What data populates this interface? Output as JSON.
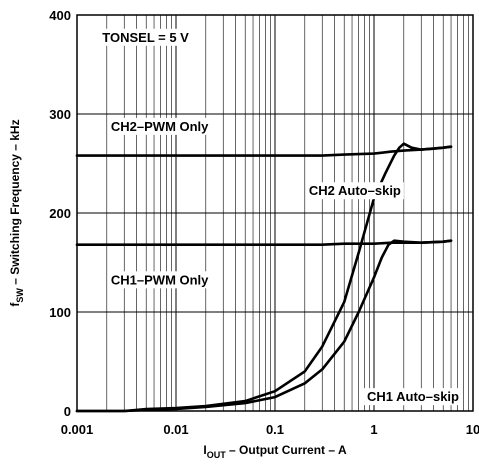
{
  "chart_data": {
    "type": "line",
    "title": "",
    "xlabel": {
      "main": "I",
      "sub": "OUT",
      "rest": " – Output Current – A"
    },
    "ylabel": {
      "main": "f",
      "sub": "SW",
      "rest": " – Switching Frequency – kHz"
    },
    "xscale": "log",
    "xlim": [
      0.001,
      10
    ],
    "ylim": [
      0,
      400
    ],
    "grid": true,
    "x_tick_labels": [
      {
        "value": 0.001,
        "label": "0.001"
      },
      {
        "value": 0.01,
        "label": "0.01"
      },
      {
        "value": 0.1,
        "label": "0.1"
      },
      {
        "value": 1,
        "label": "1"
      },
      {
        "value": 10,
        "label": "10"
      }
    ],
    "y_tick_labels": [
      {
        "value": 0,
        "label": "0"
      },
      {
        "value": 100,
        "label": "100"
      },
      {
        "value": 200,
        "label": "200"
      },
      {
        "value": 300,
        "label": "300"
      },
      {
        "value": 400,
        "label": "400"
      }
    ],
    "annotations": [
      {
        "text": "TONSEL = 5 V",
        "x": 0.0018,
        "y": 378
      },
      {
        "text": "CH2–PWM Only",
        "x": 0.0022,
        "y": 288
      },
      {
        "text": "CH2 Auto–skip",
        "x": 0.22,
        "y": 223
      },
      {
        "text": "CH1–PWM Only",
        "x": 0.0022,
        "y": 133
      },
      {
        "text": "CH1 Auto–skip",
        "x": 0.85,
        "y": 15
      }
    ],
    "series": [
      {
        "x": [
          0.001,
          0.3,
          0.5,
          1,
          1.5,
          2,
          3,
          5,
          6
        ],
        "y": [
          258,
          258,
          259,
          260,
          262,
          263,
          264,
          266,
          267
        ]
      },
      {
        "x": [
          0.001,
          0.3,
          0.5,
          1,
          1.5,
          2,
          3,
          5,
          6
        ],
        "y": [
          168,
          168,
          169,
          169,
          170,
          170,
          170,
          171,
          172
        ]
      },
      {
        "x": [
          0.001,
          0.003,
          0.005,
          0.01,
          0.02,
          0.05,
          0.1,
          0.2,
          0.3,
          0.5,
          0.7,
          1,
          1.3,
          1.6,
          1.8,
          2,
          2.4,
          3,
          4,
          5,
          6
        ],
        "y": [
          0,
          0,
          2,
          3,
          5,
          10,
          20,
          40,
          65,
          110,
          160,
          215,
          240,
          258,
          266,
          270,
          266,
          264,
          265,
          266,
          267
        ]
      },
      {
        "x": [
          0.001,
          0.003,
          0.005,
          0.01,
          0.02,
          0.05,
          0.1,
          0.2,
          0.3,
          0.5,
          0.7,
          1,
          1.2,
          1.4,
          1.6,
          2,
          3,
          5,
          6
        ],
        "y": [
          0,
          0,
          1,
          2,
          4,
          8,
          14,
          28,
          42,
          70,
          100,
          135,
          155,
          168,
          172,
          171,
          170,
          171,
          172
        ]
      }
    ]
  }
}
